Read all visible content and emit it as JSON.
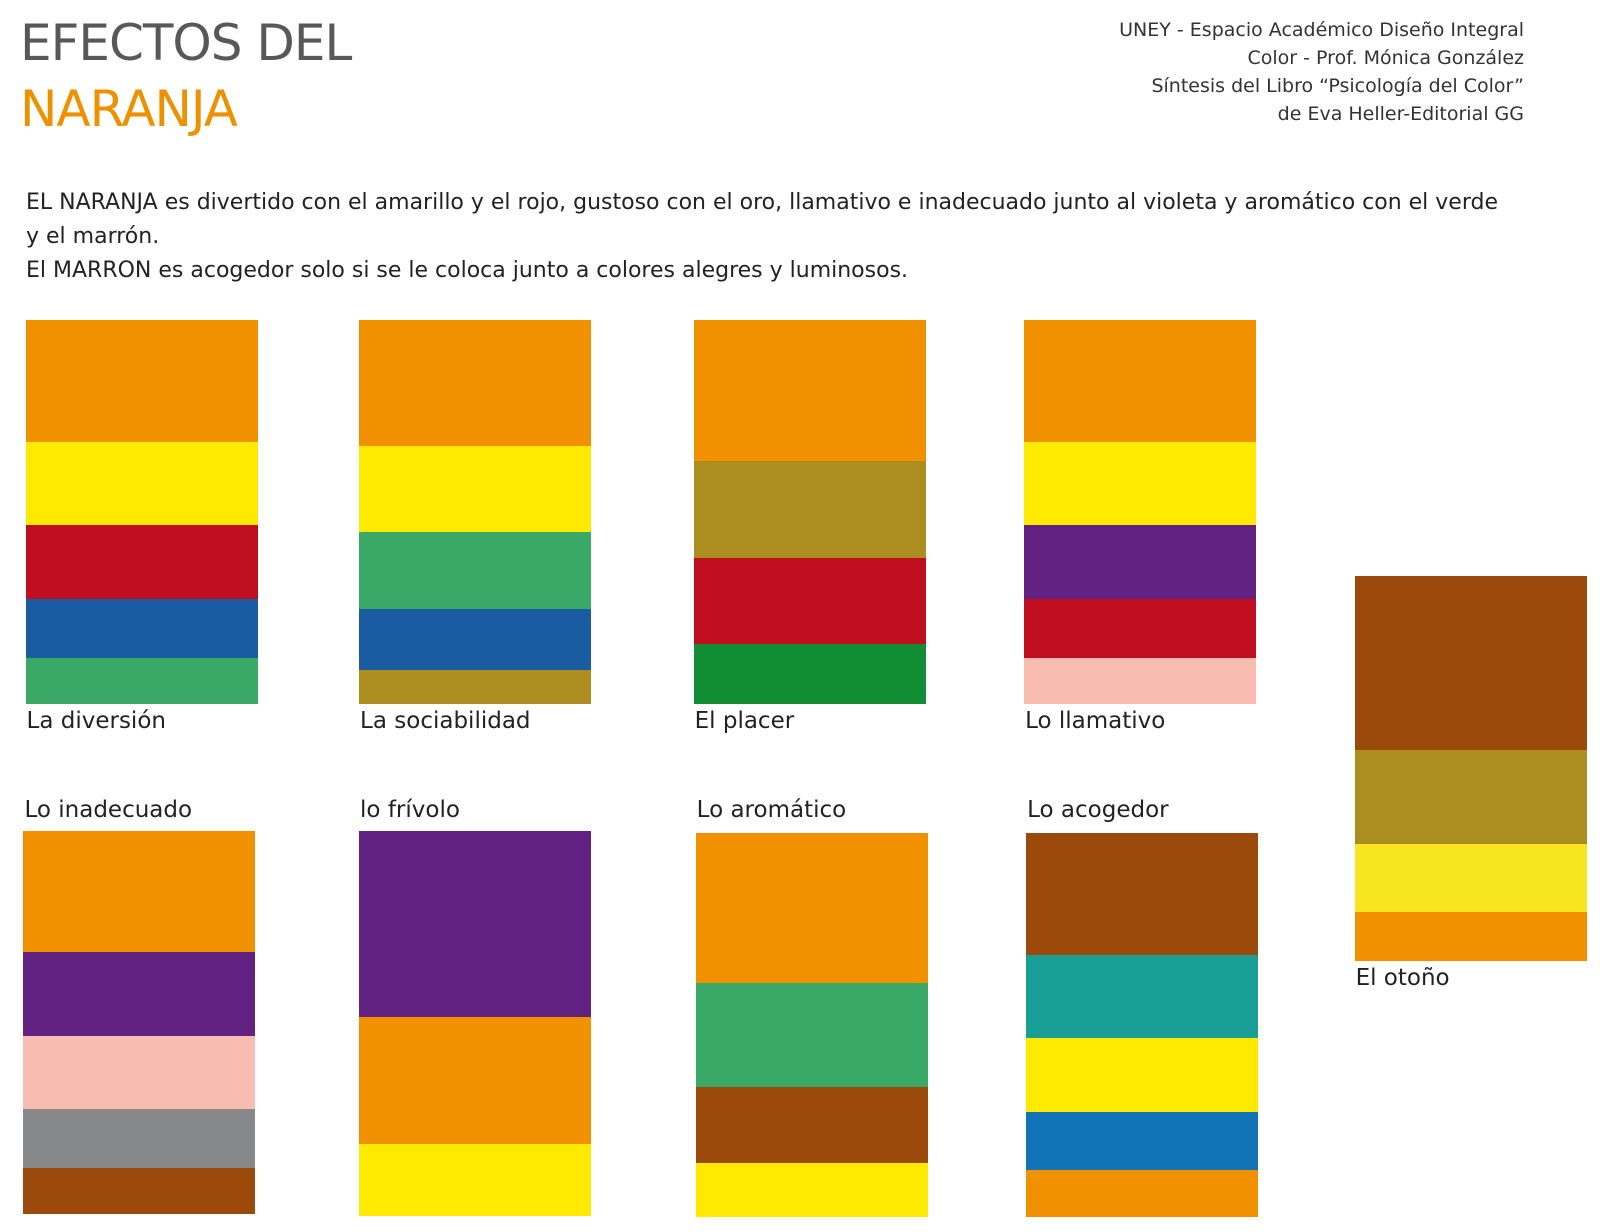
{
  "header": {
    "title_line1": "EFECTOS DEL",
    "title_line2": "NARANJA",
    "credits": [
      "UNEY - Espacio Académico Diseño Integral",
      "Color -  Prof. Mónica González",
      "Síntesis del Libro “Psicología del Color”",
      "de Eva Heller-Editorial GG"
    ]
  },
  "intro": [
    "EL NARANJA es divertido con el amarillo y el rojo, gustoso con el oro, llamativo e inadecuado junto al violeta y aromático con el verde y el marrón.",
    "El MARRON es acogedor solo si se le coloca junto a colores alegres y luminosos."
  ],
  "panels": [
    {
      "label": "La diversión"
    },
    {
      "label": "La sociabilidad"
    },
    {
      "label": "El placer"
    },
    {
      "label": "Lo llamativo"
    },
    {
      "label": "Lo inadecuado"
    },
    {
      "label": "lo frívolo"
    },
    {
      "label": "Lo aromático"
    },
    {
      "label": "Lo acogedor"
    },
    {
      "label": "El otoño"
    }
  ]
}
